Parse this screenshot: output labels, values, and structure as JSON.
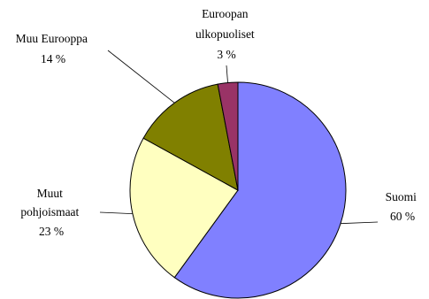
{
  "chart_data": {
    "type": "pie",
    "title": "",
    "slices": [
      {
        "name_lines": [
          "Suomi"
        ],
        "value_label": "60 %",
        "value": 60,
        "color": "#8080ff"
      },
      {
        "name_lines": [
          "Muut",
          "pohjoismaat"
        ],
        "value_label": "23 %",
        "value": 23,
        "color": "#ffffc0"
      },
      {
        "name_lines": [
          "Muu Eurooppa"
        ],
        "value_label": "14 %",
        "value": 14,
        "color": "#808000"
      },
      {
        "name_lines": [
          "Euroopan",
          "ulkopuoliset"
        ],
        "value_label": "3 %",
        "value": 3,
        "color": "#993366"
      }
    ],
    "start_angle_deg": 0,
    "direction": "clockwise",
    "legend": "none"
  }
}
